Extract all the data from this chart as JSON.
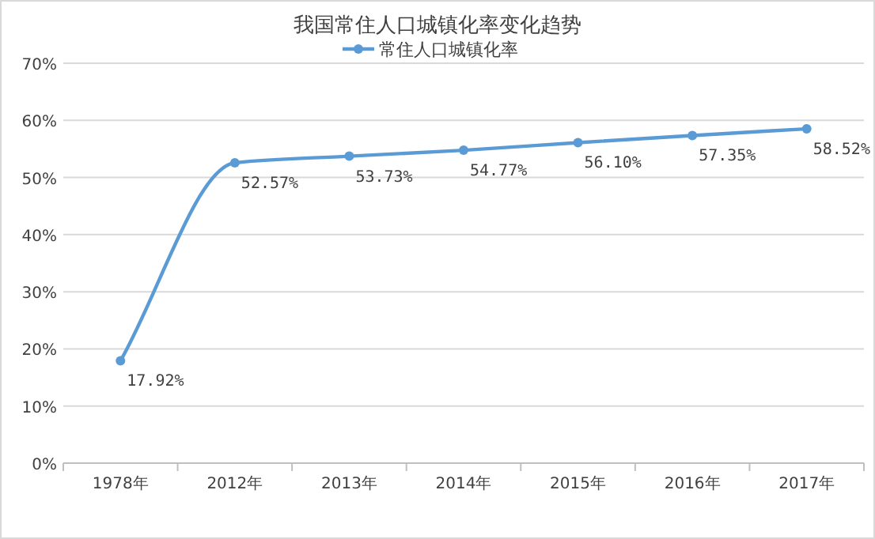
{
  "chart_data": {
    "type": "line",
    "title": "我国常住人口城镇化率变化趋势",
    "categories": [
      "1978年",
      "2012年",
      "2013年",
      "2014年",
      "2015年",
      "2016年",
      "2017年"
    ],
    "series": [
      {
        "name": "常住人口城镇化率",
        "color": "#5b9bd5",
        "values": [
          17.92,
          52.57,
          53.73,
          54.77,
          56.1,
          57.35,
          58.52
        ],
        "value_labels": [
          "17.92%",
          "52.57%",
          "53.73%",
          "54.77%",
          "56.10%",
          "57.35%",
          "58.52%"
        ]
      }
    ],
    "ylim": [
      0,
      70
    ],
    "yticks": [
      {
        "value": 0,
        "label": "0%"
      },
      {
        "value": 10,
        "label": "10%"
      },
      {
        "value": 20,
        "label": "20%"
      },
      {
        "value": 30,
        "label": "30%"
      },
      {
        "value": 40,
        "label": "40%"
      },
      {
        "value": 50,
        "label": "50%"
      },
      {
        "value": 60,
        "label": "60%"
      },
      {
        "value": 70,
        "label": "70%"
      }
    ],
    "grid": "y",
    "legend": "top",
    "marker": "circle",
    "line_style": "solid"
  }
}
